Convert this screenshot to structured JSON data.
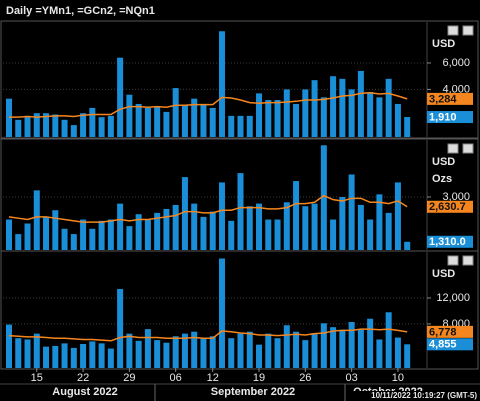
{
  "title": "Daily =YMn1, =GCn2, =NQn1",
  "timestamp": "10/11/2022 10:19:27 (GMT-5)",
  "months": [
    "August 2022",
    "September 2022",
    "October 2022"
  ],
  "chart_data": [
    {
      "type": "bar",
      "units": [
        "USD"
      ],
      "ylim": [
        400,
        9100
      ],
      "yticks": [
        {
          "value": 4000,
          "label": "4,000"
        },
        {
          "value": 6000,
          "label": "6,000"
        }
      ],
      "grid": true,
      "series": [
        {
          "type": "bar",
          "color": "#1a8fd8",
          "values": [
            3300,
            1700,
            2000,
            2200,
            2200,
            2100,
            1700,
            1300,
            2200,
            2600,
            1900,
            2000,
            6400,
            3600,
            2900,
            2600,
            2700,
            2300,
            4100,
            2800,
            3300,
            2900,
            2600,
            8400,
            2000,
            2000,
            2000,
            3700,
            3200,
            3200,
            4000,
            2900,
            4000,
            4700,
            3400,
            5000,
            4800,
            4000,
            5400,
            3800,
            3400,
            4800,
            2900,
            1910
          ],
          "value_labels": [
            null,
            null,
            null,
            null,
            null,
            null,
            null,
            null,
            null,
            null,
            null,
            null,
            null,
            null,
            null,
            null,
            null,
            null,
            null,
            null,
            null,
            null,
            null,
            null,
            null,
            null,
            null,
            null,
            null,
            null,
            null,
            null,
            null,
            null,
            null,
            null,
            null,
            null,
            null,
            null,
            null,
            null,
            null,
            "1,910"
          ]
        },
        {
          "type": "line",
          "color": "#f5861f",
          "values": [
            1900,
            1900,
            1950,
            1900,
            1950,
            2000,
            2000,
            1950,
            2050,
            2100,
            2100,
            2100,
            2500,
            2700,
            2700,
            2650,
            2700,
            2650,
            2800,
            2800,
            2850,
            2850,
            2850,
            3400,
            3350,
            3200,
            3000,
            2950,
            3000,
            3000,
            3050,
            3100,
            3200,
            3200,
            3250,
            3350,
            3500,
            3550,
            3700,
            3750,
            3650,
            3700,
            3500,
            3284
          ],
          "value_labels": [
            null,
            null,
            null,
            null,
            null,
            null,
            null,
            null,
            null,
            null,
            null,
            null,
            null,
            null,
            null,
            null,
            null,
            null,
            null,
            null,
            null,
            null,
            null,
            null,
            null,
            null,
            null,
            null,
            null,
            null,
            null,
            null,
            null,
            null,
            null,
            null,
            null,
            null,
            null,
            null,
            null,
            null,
            null,
            "3,284"
          ]
        }
      ]
    },
    {
      "type": "bar",
      "units": [
        "USD",
        "Ozs"
      ],
      "ylim": [
        1000,
        5150
      ],
      "yticks": [
        {
          "value": 3000,
          "label": "3,000"
        }
      ],
      "grid": true,
      "series": [
        {
          "type": "bar",
          "color": "#1a8fd8",
          "values": [
            2150,
            1600,
            2000,
            3250,
            2250,
            2500,
            1800,
            1600,
            2150,
            1800,
            2100,
            2150,
            2750,
            1900,
            2350,
            2150,
            2400,
            2550,
            2700,
            3750,
            2750,
            2250,
            2450,
            3550,
            2100,
            3900,
            2650,
            2750,
            2150,
            2150,
            2800,
            3600,
            2650,
            2750,
            4950,
            2150,
            3000,
            3850,
            2700,
            2150,
            3100,
            2400,
            3550,
            1310
          ],
          "value_labels": [
            null,
            null,
            null,
            null,
            null,
            null,
            null,
            null,
            null,
            null,
            null,
            null,
            null,
            null,
            null,
            null,
            null,
            null,
            null,
            null,
            null,
            null,
            null,
            null,
            null,
            null,
            null,
            null,
            null,
            null,
            null,
            null,
            null,
            null,
            null,
            null,
            null,
            null,
            null,
            null,
            null,
            null,
            null,
            "1,310.0"
          ]
        },
        {
          "type": "line",
          "color": "#f5861f",
          "values": [
            2250,
            2200,
            2150,
            2250,
            2250,
            2200,
            2150,
            2100,
            2050,
            2050,
            2050,
            2100,
            2150,
            2100,
            2150,
            2150,
            2200,
            2250,
            2300,
            2450,
            2450,
            2400,
            2400,
            2500,
            2500,
            2600,
            2600,
            2600,
            2550,
            2550,
            2600,
            2750,
            2750,
            2800,
            3050,
            2900,
            2850,
            2950,
            2950,
            2800,
            2800,
            2750,
            2850,
            2630.7
          ],
          "value_labels": [
            null,
            null,
            null,
            null,
            null,
            null,
            null,
            null,
            null,
            null,
            null,
            null,
            null,
            null,
            null,
            null,
            null,
            null,
            null,
            null,
            null,
            null,
            null,
            null,
            null,
            null,
            null,
            null,
            null,
            null,
            null,
            null,
            null,
            null,
            null,
            null,
            null,
            null,
            null,
            null,
            null,
            null,
            null,
            "2,630.7"
          ]
        }
      ]
    },
    {
      "type": "bar",
      "units": [
        "USD"
      ],
      "ylim": [
        1200,
        19100
      ],
      "yticks": [
        {
          "value": 8000,
          "label": "8,000"
        },
        {
          "value": 12000,
          "label": "12,000"
        }
      ],
      "grid": true,
      "categories": [
        null,
        null,
        null,
        "15",
        null,
        null,
        null,
        null,
        "22",
        null,
        null,
        null,
        null,
        "29",
        null,
        null,
        null,
        null,
        "06",
        null,
        null,
        null,
        "12",
        null,
        null,
        null,
        null,
        "19",
        null,
        null,
        null,
        null,
        "26",
        null,
        null,
        null,
        null,
        "03",
        null,
        null,
        null,
        null,
        "10",
        null
      ],
      "series": [
        {
          "type": "bar",
          "color": "#1a8fd8",
          "values": [
            7900,
            5800,
            5600,
            6500,
            4500,
            4600,
            5000,
            4300,
            4900,
            5300,
            5000,
            4200,
            13400,
            6500,
            5400,
            7200,
            5500,
            5100,
            6100,
            6500,
            6800,
            5800,
            6100,
            18100,
            5800,
            6500,
            6800,
            4800,
            6500,
            5800,
            7800,
            6800,
            5500,
            6600,
            8100,
            7500,
            7100,
            8300,
            7200,
            8800,
            5600,
            9800,
            5900,
            4855
          ],
          "value_labels": [
            null,
            null,
            null,
            null,
            null,
            null,
            null,
            null,
            null,
            null,
            null,
            null,
            null,
            null,
            null,
            null,
            null,
            null,
            null,
            null,
            null,
            null,
            null,
            null,
            null,
            null,
            null,
            null,
            null,
            null,
            null,
            null,
            null,
            null,
            null,
            null,
            null,
            null,
            null,
            null,
            null,
            null,
            null,
            "4,855"
          ]
        },
        {
          "type": "line",
          "color": "#f5861f",
          "values": [
            6200,
            6100,
            6000,
            6000,
            5900,
            5800,
            5800,
            5700,
            5600,
            5600,
            5500,
            5400,
            5900,
            6100,
            5900,
            5900,
            5900,
            5800,
            5800,
            5800,
            5900,
            5800,
            5800,
            6900,
            6800,
            6600,
            6500,
            6300,
            6300,
            6200,
            6300,
            6400,
            6300,
            6500,
            6600,
            6900,
            7000,
            7000,
            7200,
            7200,
            7100,
            7200,
            7000,
            6778
          ],
          "value_labels": [
            null,
            null,
            null,
            null,
            null,
            null,
            null,
            null,
            null,
            null,
            null,
            null,
            null,
            null,
            null,
            null,
            null,
            null,
            null,
            null,
            null,
            null,
            null,
            null,
            null,
            null,
            null,
            null,
            null,
            null,
            null,
            null,
            null,
            null,
            null,
            null,
            null,
            null,
            null,
            null,
            null,
            null,
            null,
            "6,778"
          ]
        }
      ]
    }
  ]
}
